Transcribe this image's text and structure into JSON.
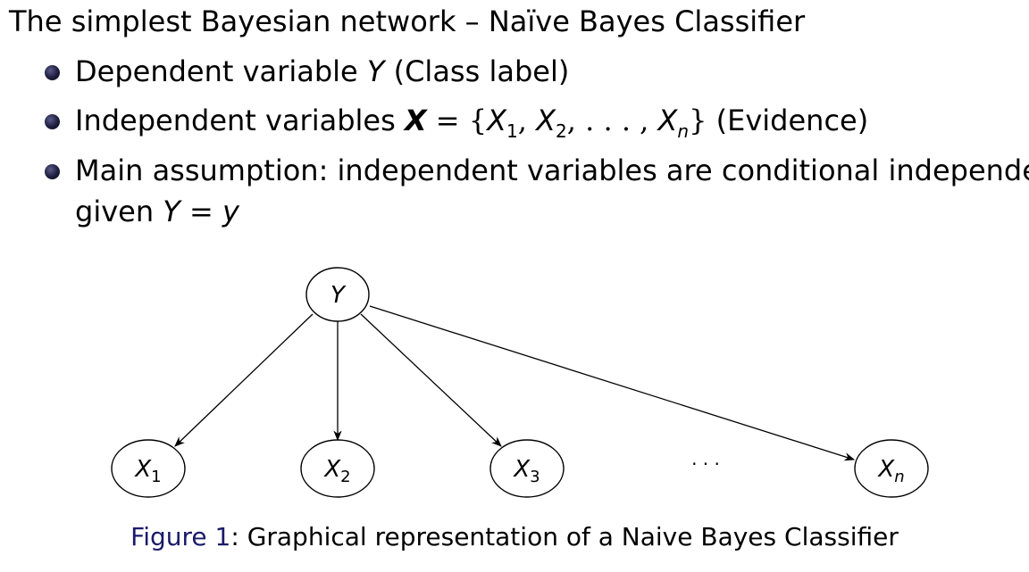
{
  "heading": "The simplest Bayesian network – Naïve Bayes Classifier",
  "bullets": [
    {
      "prefix": "Dependent variable ",
      "var": "Y",
      "suffix": " (Class label)"
    },
    {
      "prefix": "Independent variables ",
      "bold_var": "X",
      "eq": " = {",
      "x": "X",
      "s1": "1",
      "comma": ", ",
      "s2": "2",
      "dots": ", . . . , ",
      "sn": "n",
      "close": "}",
      "suffix": " (Evidence)"
    },
    {
      "line1": "Main assumption: independent variables are conditional independent",
      "line2_prefix": "given ",
      "y_upper": "Y",
      "eq": " = ",
      "y_lower": "y"
    }
  ],
  "diagram": {
    "root": {
      "label": "Y"
    },
    "children": [
      {
        "label": "X",
        "sub": "1"
      },
      {
        "label": "X",
        "sub": "2"
      },
      {
        "label": "X",
        "sub": "3"
      },
      {
        "label": "X",
        "sub": "n"
      }
    ],
    "ellipsis": "· · ·",
    "colors": {
      "stroke": "#000000",
      "fill": "#ffffff"
    }
  },
  "caption": {
    "tag": "Figure 1",
    "text": ": Graphical representation of a Naive Bayes Classifier",
    "tag_color": "#1a1a6b"
  }
}
